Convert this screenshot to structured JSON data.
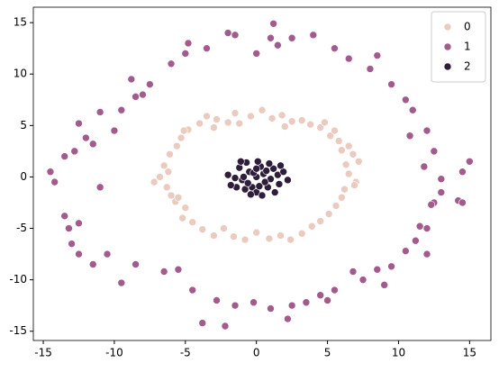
{
  "chart_data": {
    "type": "scatter",
    "xlim": [
      -15.7,
      16.5
    ],
    "ylim": [
      -15.9,
      16.5
    ],
    "xticks": [
      -15,
      -10,
      -5,
      0,
      5,
      10,
      15
    ],
    "yticks": [
      -15,
      -10,
      -5,
      0,
      5,
      10,
      15
    ],
    "legend": "upper right",
    "series": [
      {
        "name": "0",
        "color": "#ebcbc0",
        "x": [
          6.5,
          7,
          6.3,
          7.2,
          6.8,
          6.0,
          6.5,
          5.8,
          5.2,
          5.5,
          4.5,
          3.8,
          3.2,
          2.5,
          1.8,
          1.1,
          0.4,
          -0.4,
          -1.2,
          -2.0,
          -2.8,
          -3.5,
          -4.0,
          -4.8,
          -5.3,
          -5.1,
          -5.6,
          -6.1,
          -6.5,
          -6.2,
          -7.2,
          -6.3,
          -6.0,
          -5.7,
          -5.0,
          -5.2,
          -4.5,
          -3.8,
          -3.0,
          -2.3,
          -1.6,
          -0.8,
          0.0,
          0.9,
          1.7,
          2.4,
          3.2,
          3.9,
          4.5,
          5.1,
          5.6,
          6.0,
          6.2,
          -5.5,
          4.8,
          2.0,
          -1.5,
          -3.0,
          6.9,
          -6.8
        ],
        "values": [
          0.3,
          -0.5,
          1.2,
          1.5,
          2.2,
          2.6,
          3.0,
          3.5,
          4.0,
          4.5,
          4.8,
          5.1,
          5.5,
          5.4,
          6.0,
          5.7,
          6.5,
          5.9,
          5.2,
          5.3,
          5.6,
          5.9,
          5.2,
          4.6,
          3.8,
          4.5,
          3.0,
          2.2,
          1.1,
          0.5,
          -0.5,
          -1.0,
          -1.8,
          -2.4,
          -3.0,
          -4.0,
          -4.4,
          -5.1,
          -5.7,
          -5.0,
          -5.8,
          -6.1,
          -5.4,
          -6.0,
          -5.7,
          -6.1,
          -5.5,
          -4.8,
          -4.3,
          -3.6,
          -2.8,
          -2.0,
          -1.2,
          -2.0,
          5.3,
          4.9,
          6.2,
          4.8,
          -0.8,
          0.0
        ]
      },
      {
        "name": "1",
        "color": "#a25b8c",
        "x": [
          15,
          14.5,
          14.2,
          13,
          12.5,
          12.3,
          11.5,
          11.2,
          12,
          10.5,
          9.5,
          8.5,
          7.5,
          6.8,
          5.5,
          4.5,
          3.5,
          2.5,
          1.0,
          2.2,
          -0.2,
          -1.5,
          -2.2,
          -2.8,
          -3.8,
          -5.5,
          -6.5,
          -8.5,
          -9.5,
          -10.5,
          -11.5,
          -12.5,
          -13.2,
          -12.5,
          -13.5,
          -14.2,
          -14.5,
          -13.5,
          -12.8,
          -11.5,
          -12.0,
          -12.5,
          -11,
          -10,
          -9.5,
          -8.5,
          -8.8,
          -7.5,
          -6.0,
          -5.0,
          -4.8,
          -3.5,
          -2.0,
          -1.5,
          0.0,
          1.0,
          1.5,
          2.5,
          4.0,
          5.5,
          6.5,
          8.0,
          8.5,
          9.5,
          10.5,
          11.0,
          10.8,
          12.0,
          12.5,
          11.8,
          13.0,
          14.5,
          12.0,
          -11,
          -13,
          -4.5,
          9.0,
          -8,
          5.0,
          1.2
        ],
        "values": [
          1.5,
          0.5,
          -2.3,
          -1.5,
          -2.5,
          -2.7,
          -4.8,
          -6.2,
          -5,
          -7.2,
          -8.7,
          -9.0,
          -10,
          -9.2,
          -11,
          -11.5,
          -12.2,
          -12.5,
          -12.8,
          -13.8,
          -12.2,
          -12.5,
          -14.5,
          -12.0,
          -14.2,
          -9.0,
          -9.2,
          -8.5,
          -10.3,
          -7.5,
          -8.5,
          -7.5,
          -5.0,
          -4.5,
          -3.8,
          -0.5,
          0.5,
          2.0,
          2.5,
          3.2,
          3.8,
          5.2,
          6.3,
          4.5,
          6.5,
          7.8,
          9.5,
          9.0,
          11.0,
          12.0,
          13.0,
          12.5,
          14.0,
          13.8,
          12.0,
          13.5,
          12.8,
          13.5,
          13.8,
          12.5,
          11.5,
          10.5,
          11.8,
          9.0,
          7.5,
          6.5,
          4.0,
          4.5,
          2.5,
          1.0,
          -0.2,
          -2.5,
          -7.5,
          -1.0,
          -6.5,
          -11,
          -10.5,
          8.0,
          -12,
          14.9
        ]
      },
      {
        "name": "2",
        "color": "#2e1e3b",
        "x": [
          0,
          0.5,
          -0.5,
          1.0,
          -1.0,
          0.3,
          -0.3,
          1.2,
          -1.2,
          0.8,
          -0.8,
          1.5,
          -1.5,
          0.1,
          0.0,
          1.6,
          -1.4,
          0.9,
          -0.7,
          1.9,
          -2.0,
          0.4,
          -0.2,
          0.6,
          -0.6,
          1.3,
          -1.1,
          2.2,
          -1.8,
          0.2,
          0.7,
          -0.9,
          1.7,
          -0.4,
          0.0
        ],
        "values": [
          0,
          0.3,
          0.5,
          -0.2,
          -0.3,
          1.0,
          -1.0,
          0.8,
          0.9,
          -1.0,
          -1.2,
          0.2,
          -0.1,
          1.5,
          -1.5,
          -0.7,
          -1.0,
          1.3,
          1.4,
          0.5,
          0.2,
          -1.8,
          0.4,
          -0.5,
          -0.6,
          -1.5,
          1.5,
          -0.3,
          -0.8,
          -0.9,
          0.6,
          0.0,
          1.1,
          -1.7,
          0.8
        ]
      }
    ]
  }
}
